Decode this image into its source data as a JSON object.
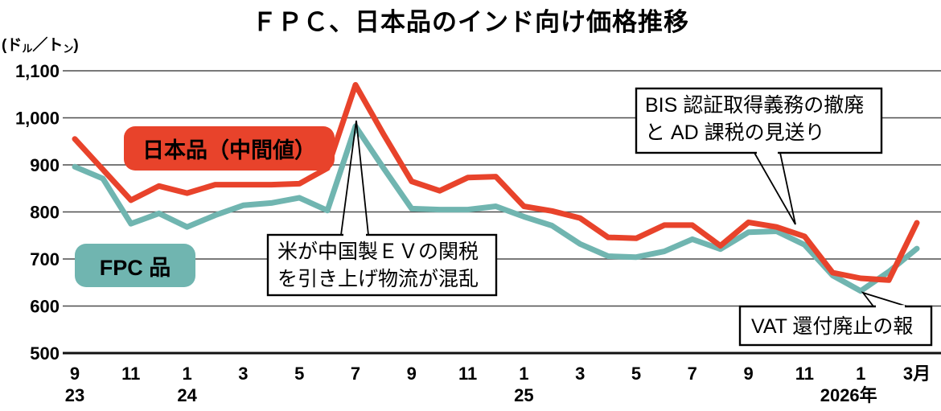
{
  "title": "ＦＰＣ、日本品のインド向け価格推移",
  "y_axis": {
    "unit_parts": [
      {
        "text": "(ド",
        "small": false
      },
      {
        "text": "ル",
        "small": true
      },
      {
        "text": "／ト",
        "small": false
      },
      {
        "text": "ン",
        "small": true
      },
      {
        "text": ")",
        "small": false
      }
    ],
    "tick_labels": [
      "1,100",
      "1,000",
      "900",
      "800",
      "700",
      "600",
      "500"
    ]
  },
  "x_axis": {
    "tick_labels": [
      "9",
      "11",
      "1",
      "3",
      "5",
      "7",
      "9",
      "11",
      "1",
      "3",
      "5",
      "7",
      "9",
      "11",
      "1",
      "3月"
    ],
    "year_labels": [
      {
        "text": "23",
        "month_index": 0
      },
      {
        "text": "24",
        "month_index": 4
      },
      {
        "text": "25",
        "month_index": 16
      },
      {
        "text": "2026年",
        "month_index": 28
      }
    ]
  },
  "legend": {
    "japan_badge": "日本品（中間値）",
    "fpc_badge": "FPC 品"
  },
  "annotations": [
    {
      "id": "ev-tariff",
      "lines": [
        "米が中国製ＥＶの関税",
        "を引き上げ物流が混乱"
      ],
      "points_to": "2024-07 価格ピーク"
    },
    {
      "id": "bis",
      "lines": [
        "BIS 認証取得義務の撤廃",
        "と AD 課税の見送り"
      ],
      "points_to": "2025-11"
    },
    {
      "id": "vat",
      "lines": [
        "VAT 還付廃止の報"
      ],
      "points_to": "2026-01 安値"
    }
  ],
  "chart_data": {
    "type": "line",
    "unit": "ドル／トン",
    "ylim": [
      500,
      1100
    ],
    "y_ticks": [
      1100,
      1000,
      900,
      800,
      700,
      600,
      500
    ],
    "grid": "horizontal",
    "x_months": [
      "2023-09",
      "2023-10",
      "2023-11",
      "2023-12",
      "2024-01",
      "2024-02",
      "2024-03",
      "2024-04",
      "2024-05",
      "2024-06",
      "2024-07",
      "2024-08",
      "2024-09",
      "2024-10",
      "2024-11",
      "2024-12",
      "2025-01",
      "2025-02",
      "2025-03",
      "2025-04",
      "2025-05",
      "2025-06",
      "2025-07",
      "2025-08",
      "2025-09",
      "2025-10",
      "2025-11",
      "2025-12",
      "2026-01",
      "2026-02",
      "2026-03"
    ],
    "series": [
      {
        "name": "日本品（中間値）",
        "color": "#e8432b",
        "values": [
          955,
          890,
          825,
          855,
          840,
          858,
          858,
          858,
          860,
          893,
          1070,
          965,
          865,
          845,
          873,
          875,
          812,
          802,
          787,
          746,
          744,
          772,
          772,
          728,
          778,
          768,
          748,
          671,
          659,
          655,
          777
        ]
      },
      {
        "name": "FPC品",
        "color": "#70b5b0",
        "values": [
          896,
          871,
          775,
          797,
          768,
          793,
          814,
          819,
          830,
          803,
          982,
          893,
          807,
          805,
          805,
          812,
          790,
          771,
          732,
          706,
          704,
          716,
          742,
          721,
          757,
          759,
          730,
          665,
          632,
          673,
          722
        ]
      }
    ]
  },
  "colors": {
    "japan_line": "#e8432b",
    "fpc_line": "#70b5b0",
    "gridline": "#4d4d4d",
    "axis_line": "#111111",
    "annotation_border": "#000000",
    "annotation_bg": "#ffffff",
    "badge_text": "#ffffff"
  }
}
